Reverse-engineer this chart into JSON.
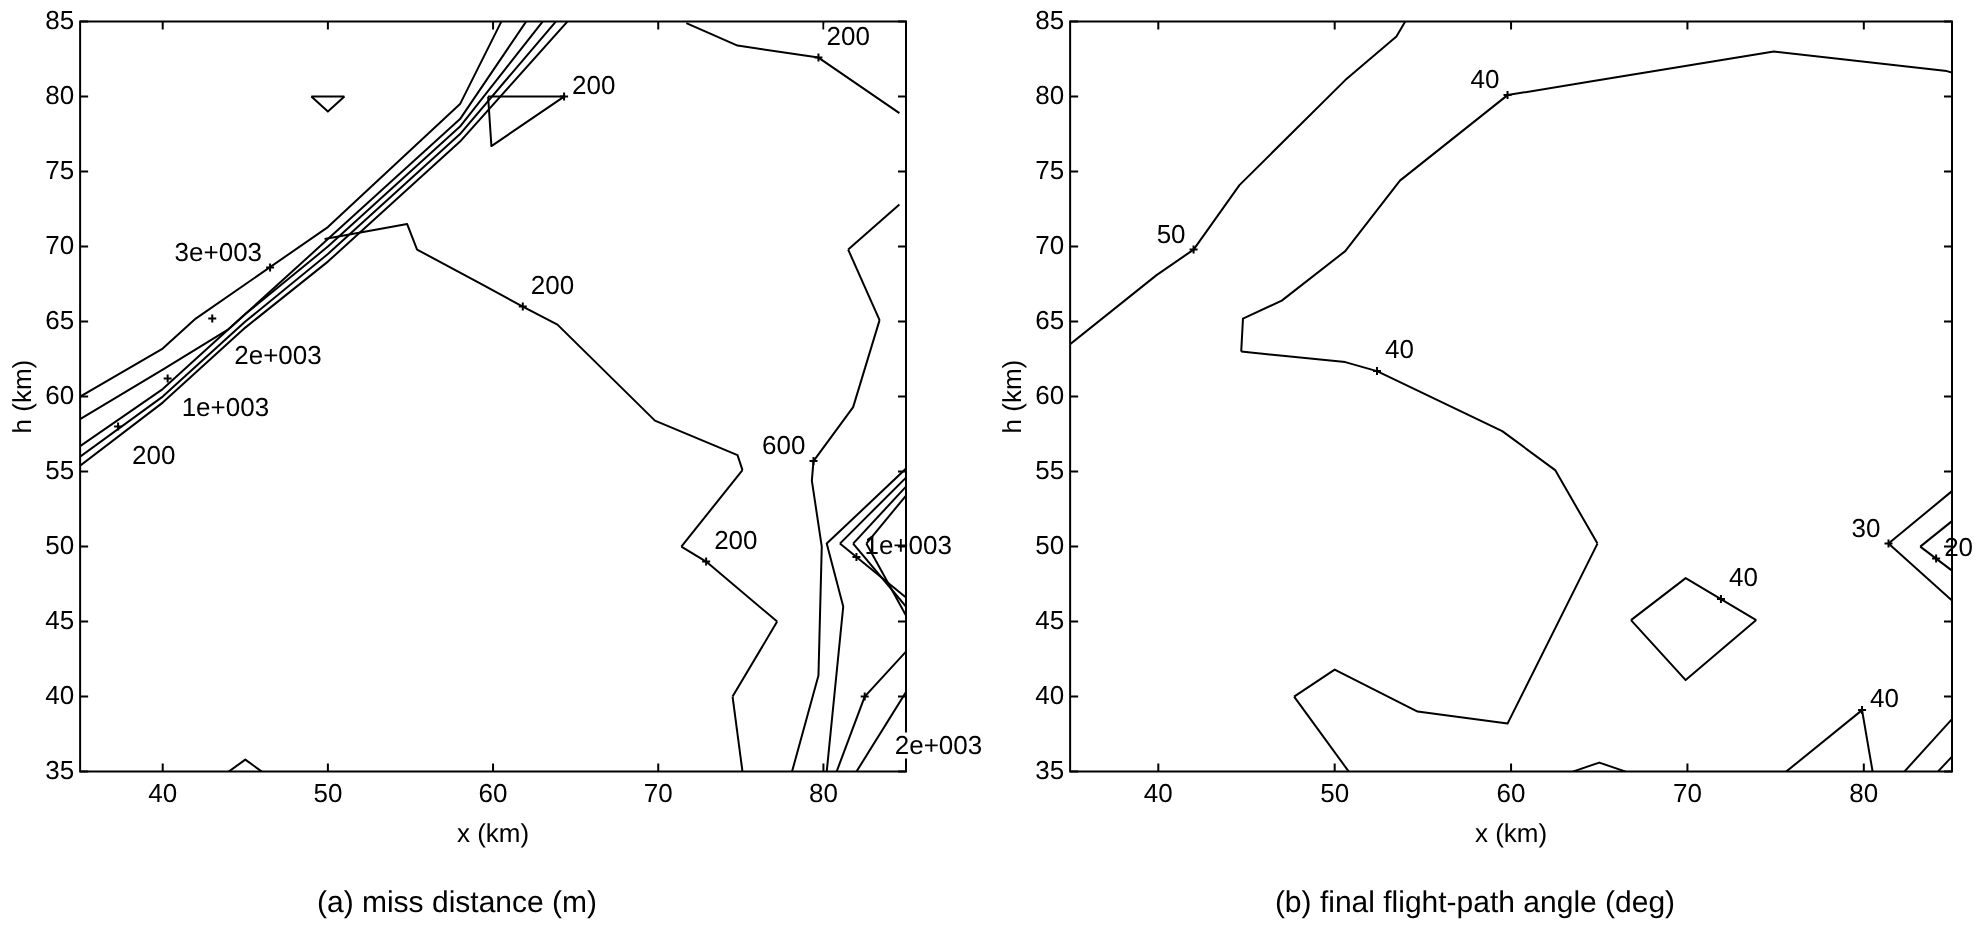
{
  "chart_data": [
    {
      "type": "line",
      "title": "(a) miss distance (m)",
      "xlabel": "x (km)",
      "ylabel": "h (km)",
      "xlim": [
        35,
        85
      ],
      "ylim": [
        35,
        85
      ],
      "xticks": [
        40,
        50,
        60,
        70,
        80
      ],
      "yticks": [
        35,
        40,
        45,
        50,
        55,
        60,
        65,
        70,
        75,
        80,
        85
      ],
      "series": [
        {
          "color": "#000000",
          "x": [
            35,
            40,
            42,
            50,
            58,
            60.5
          ],
          "values": [
            60.0,
            63.2,
            65.2,
            71.3,
            79.5,
            85
          ]
        },
        {
          "color": "#000000",
          "x": [
            35,
            40,
            44,
            50,
            58,
            62
          ],
          "values": [
            58.5,
            61.8,
            64.5,
            70.5,
            78.5,
            85
          ]
        },
        {
          "color": "#000000",
          "x": [
            35,
            40,
            45,
            50,
            58,
            63
          ],
          "values": [
            56.7,
            60.5,
            65.5,
            70,
            78,
            85
          ]
        },
        {
          "color": "#000000",
          "x": [
            35,
            40,
            45,
            50,
            58,
            63.8
          ],
          "values": [
            56,
            60,
            65,
            69.5,
            77.5,
            85
          ]
        },
        {
          "color": "#000000",
          "x": [
            35,
            40,
            45,
            50,
            58,
            64.5
          ],
          "values": [
            55.4,
            59.6,
            64.6,
            69,
            77,
            85
          ]
        },
        {
          "color": "#000000",
          "x": [
            49,
            51
          ],
          "values": [
            80,
            80
          ]
        },
        {
          "color": "#000000",
          "x": [
            49,
            50,
            51
          ],
          "values": [
            80,
            79,
            80
          ]
        },
        {
          "color": "#000000",
          "x": [
            44,
            45,
            46
          ],
          "values": [
            35,
            35.8,
            35
          ]
        },
        {
          "color": "#000000",
          "x": [
            71.7,
            74.8,
            79.7,
            84.6
          ],
          "values": [
            84.9,
            83.4,
            82.6,
            78.9
          ]
        },
        {
          "color": "#000000",
          "x": [
            59.7,
            64.3
          ],
          "values": [
            80,
            80
          ]
        },
        {
          "color": "#000000",
          "x": [
            59.7,
            59.9,
            64.3
          ],
          "values": [
            80,
            76.7,
            80
          ]
        },
        {
          "color": "#000000",
          "x": [
            49.8,
            54.8,
            55.4,
            59.3,
            61.8,
            63.9,
            69.8,
            74.8,
            75.1
          ],
          "values": [
            70.5,
            71.5,
            69.8,
            67.5,
            66,
            64.8,
            58.4,
            56.1,
            55.1
          ]
        },
        {
          "color": "#000000",
          "x": [
            75.1,
            71.4
          ],
          "values": [
            55.1,
            50
          ]
        },
        {
          "color": "#000000",
          "x": [
            71.4,
            72.9,
            77.2
          ],
          "values": [
            50,
            49,
            45
          ]
        },
        {
          "color": "#000000",
          "x": [
            77.2,
            74.5
          ],
          "values": [
            45,
            40
          ]
        },
        {
          "color": "#000000",
          "x": [
            74.5,
            75.1
          ],
          "values": [
            40,
            35
          ]
        },
        {
          "color": "#000000",
          "x": [
            84.6,
            81.5
          ],
          "values": [
            72.8,
            69.8
          ]
        },
        {
          "color": "#000000",
          "x": [
            81.5,
            83.4
          ],
          "values": [
            69.8,
            65.1
          ]
        },
        {
          "color": "#000000",
          "x": [
            83.4,
            81.8,
            79.4,
            79.3,
            79.9,
            79.7,
            78.1
          ],
          "values": [
            65.1,
            59.3,
            55.7,
            54.4,
            50,
            41.4,
            35
          ]
        },
        {
          "color": "#000000",
          "x": [
            85,
            80.2,
            81.2,
            80.2
          ],
          "values": [
            55.2,
            50.2,
            46,
            35
          ]
        },
        {
          "color": "#000000",
          "x": [
            85,
            81
          ],
          "values": [
            54.6,
            50.2
          ]
        },
        {
          "color": "#000000",
          "x": [
            81,
            85
          ],
          "values": [
            50.2,
            46.6
          ]
        },
        {
          "color": "#000000",
          "x": [
            85,
            81.8
          ],
          "values": [
            54,
            50.2
          ]
        },
        {
          "color": "#000000",
          "x": [
            81.8,
            85
          ],
          "values": [
            50.2,
            46
          ]
        },
        {
          "color": "#000000",
          "x": [
            85,
            82.6
          ],
          "values": [
            53.4,
            50.2
          ]
        },
        {
          "color": "#000000",
          "x": [
            82.6,
            85
          ],
          "values": [
            50.2,
            45.4
          ]
        },
        {
          "color": "#000000",
          "x": [
            85,
            82.5,
            80.8
          ],
          "values": [
            43,
            40,
            35
          ]
        },
        {
          "color": "#000000",
          "x": [
            85,
            82
          ],
          "values": [
            40.3,
            35
          ]
        }
      ],
      "annotations": [
        {
          "text": "3e+003",
          "x": 46.5,
          "y": 68.6
        },
        {
          "text": "2e+003",
          "x": 43,
          "y": 65.2
        },
        {
          "text": "1e+003",
          "x": 40.3,
          "y": 61.2
        },
        {
          "text": "200",
          "x": 37.3,
          "y": 58
        },
        {
          "text": "200",
          "x": 79.7,
          "y": 82.6
        },
        {
          "text": "200",
          "x": 64.3,
          "y": 80
        },
        {
          "text": "200",
          "x": 61.8,
          "y": 66
        },
        {
          "text": "600",
          "x": 79.4,
          "y": 55.7
        },
        {
          "text": "200",
          "x": 72.9,
          "y": 49
        },
        {
          "text": "1e+003",
          "x": 82,
          "y": 49.3
        },
        {
          "text": "2e+003",
          "x": 82.5,
          "y": 40
        }
      ]
    },
    {
      "type": "line",
      "title": "(b) final flight-path angle (deg)",
      "xlabel": "x (km)",
      "ylabel": "h (km)",
      "xlim": [
        35,
        85
      ],
      "ylim": [
        35,
        85
      ],
      "xticks": [
        40,
        50,
        60,
        70,
        80
      ],
      "yticks": [
        35,
        40,
        45,
        50,
        55,
        60,
        65,
        70,
        75,
        80,
        85
      ],
      "series": [
        {
          "color": "#000000",
          "x": [
            35,
            39.9,
            42,
            44.6,
            50.6,
            53.5,
            54
          ],
          "values": [
            63.5,
            68.1,
            69.8,
            74.1,
            81.1,
            84,
            85
          ]
        },
        {
          "color": "#000000",
          "x": [
            50.8,
            47.7
          ],
          "values": [
            35,
            40
          ]
        },
        {
          "color": "#000000",
          "x": [
            47.7,
            50,
            54.7,
            59.8,
            64.9
          ],
          "values": [
            40,
            41.8,
            39,
            38.2,
            50.2
          ]
        },
        {
          "color": "#000000",
          "x": [
            64.9,
            62.5,
            59.5,
            52.4,
            50.6,
            44.7
          ],
          "values": [
            50.2,
            55.1,
            57.7,
            61.7,
            62.3,
            63
          ]
        },
        {
          "color": "#000000",
          "x": [
            44.7,
            44.8,
            47,
            50.6,
            53.7,
            59.8,
            64.5,
            74.9,
            84.7,
            85
          ],
          "values": [
            63,
            65.2,
            66.4,
            69.7,
            74.4,
            80.1,
            81,
            83,
            81.7,
            81.6
          ]
        },
        {
          "color": "#000000",
          "x": [
            66.8,
            69.9,
            73.9
          ],
          "values": [
            45.1,
            47.9,
            45.1
          ]
        },
        {
          "color": "#000000",
          "x": [
            66.8,
            69.9,
            73.9
          ],
          "values": [
            45.1,
            41.1,
            45.1
          ]
        },
        {
          "color": "#000000",
          "x": [
            85,
            81.4
          ],
          "values": [
            53.7,
            50.2
          ]
        },
        {
          "color": "#000000",
          "x": [
            81.4,
            85
          ],
          "values": [
            50.2,
            46.4
          ]
        },
        {
          "color": "#000000",
          "x": [
            85,
            83.2
          ],
          "values": [
            51.7,
            50
          ]
        },
        {
          "color": "#000000",
          "x": [
            83.2,
            85
          ],
          "values": [
            50,
            48.4
          ]
        },
        {
          "color": "#000000",
          "x": [
            75.6,
            79.9
          ],
          "values": [
            35,
            39.1
          ]
        },
        {
          "color": "#000000",
          "x": [
            79.9,
            80.5
          ],
          "values": [
            39.1,
            35
          ]
        },
        {
          "color": "#000000",
          "x": [
            82.3,
            85
          ],
          "values": [
            35,
            38.5
          ]
        },
        {
          "color": "#000000",
          "x": [
            84.2,
            85
          ],
          "values": [
            35,
            36
          ]
        },
        {
          "color": "#000000",
          "x": [
            63.5,
            65,
            66.5
          ],
          "values": [
            35,
            35.6,
            35
          ]
        }
      ],
      "annotations": [
        {
          "text": "50",
          "x": 42,
          "y": 69.8
        },
        {
          "text": "40",
          "x": 59.8,
          "y": 80.1
        },
        {
          "text": "40",
          "x": 52.4,
          "y": 61.7
        },
        {
          "text": "40",
          "x": 71.9,
          "y": 46.5
        },
        {
          "text": "30",
          "x": 81.4,
          "y": 50.2
        },
        {
          "text": "20",
          "x": 84.1,
          "y": 49.2
        },
        {
          "text": "40",
          "x": 79.9,
          "y": 39.1
        }
      ]
    }
  ]
}
